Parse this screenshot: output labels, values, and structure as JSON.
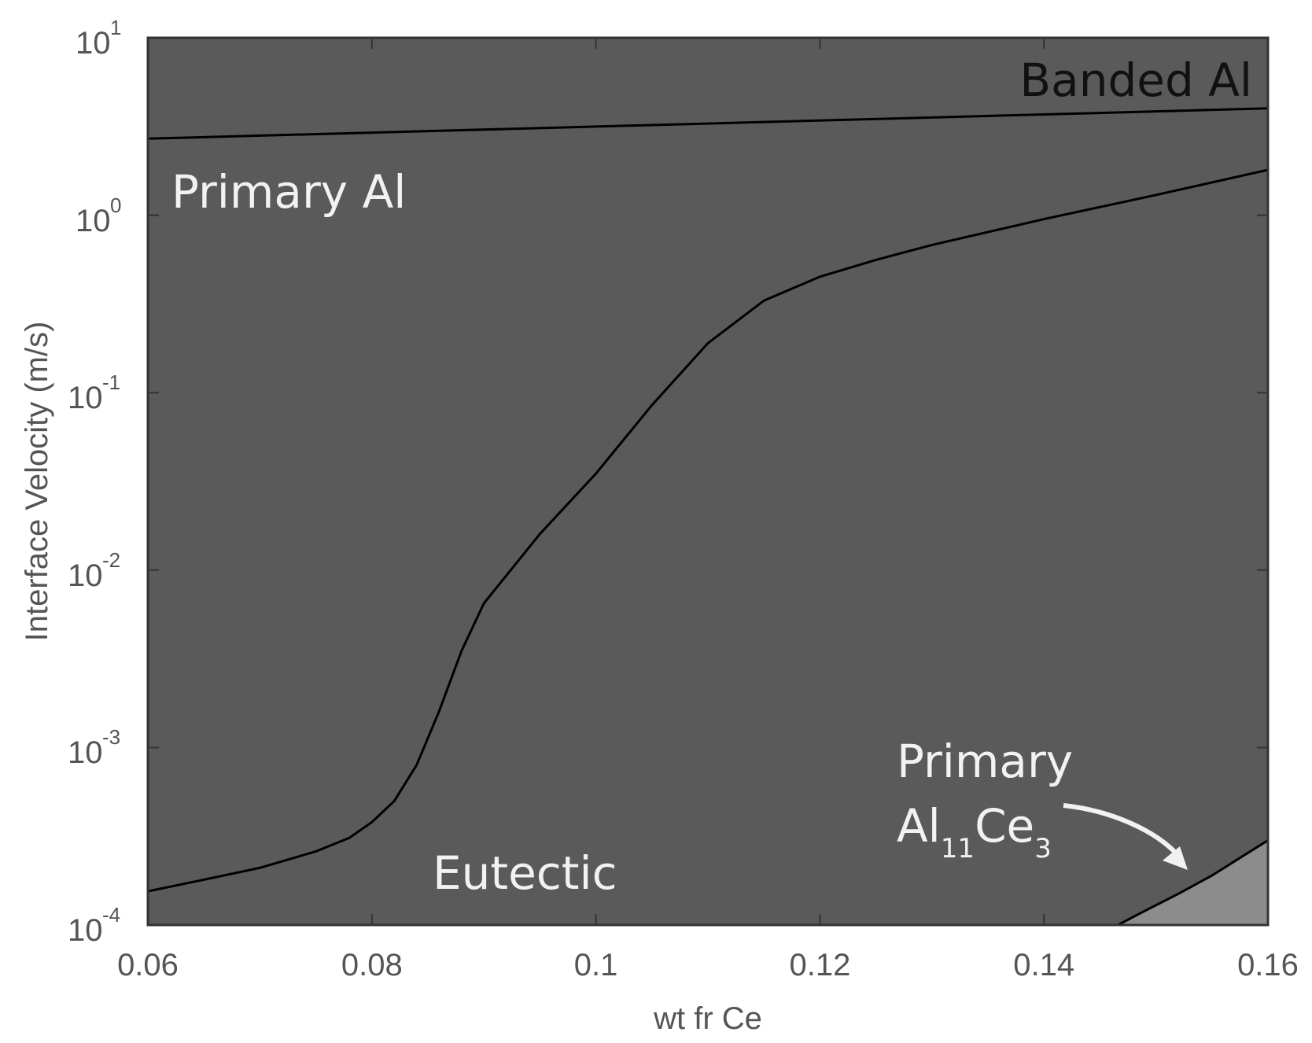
{
  "chart_data": {
    "type": "area",
    "title": "",
    "xlabel": "wt fr Ce",
    "ylabel": "Interface Velocity (m/s)",
    "xlim": [
      0.06,
      0.16
    ],
    "ylim": [
      0.0001,
      10
    ],
    "y_scale": "log",
    "x_ticks": [
      "0.06",
      "0.08",
      "0.1",
      "0.12",
      "0.14",
      "0.16"
    ],
    "y_ticks": [
      {
        "base": "10",
        "exp": "-4",
        "value": 0.0001
      },
      {
        "base": "10",
        "exp": "-3",
        "value": 0.001
      },
      {
        "base": "10",
        "exp": "-2",
        "value": 0.01
      },
      {
        "base": "10",
        "exp": "-1",
        "value": 0.1
      },
      {
        "base": "10",
        "exp": "0",
        "value": 1
      },
      {
        "base": "10",
        "exp": "1",
        "value": 10
      }
    ],
    "grid": false,
    "boundaries": [
      {
        "between": [
          "Banded Al",
          "Primary Al"
        ],
        "x": [
          0.06,
          0.16
        ],
        "y": [
          2.7,
          4.0
        ]
      },
      {
        "between": [
          "Primary Al",
          "Eutectic"
        ],
        "x": [
          0.06,
          0.065,
          0.07,
          0.075,
          0.078,
          0.08,
          0.082,
          0.084,
          0.086,
          0.088,
          0.09,
          0.095,
          0.1,
          0.105,
          0.11,
          0.115,
          0.12,
          0.125,
          0.13,
          0.14,
          0.15,
          0.16
        ],
        "y": [
          0.000155,
          0.00018,
          0.00021,
          0.00026,
          0.00031,
          0.00038,
          0.0005,
          0.0008,
          0.0016,
          0.0035,
          0.0065,
          0.016,
          0.035,
          0.085,
          0.19,
          0.33,
          0.45,
          0.56,
          0.68,
          0.95,
          1.3,
          1.8
        ]
      },
      {
        "between": [
          "Eutectic",
          "Primary Al11Ce3"
        ],
        "x": [
          0.1466,
          0.149,
          0.152,
          0.155,
          0.158,
          0.16
        ],
        "y": [
          0.0001,
          0.00012,
          0.00015,
          0.00019,
          0.00025,
          0.0003
        ]
      }
    ],
    "regions": [
      {
        "name": "Banded Al",
        "color": "#b5b5b5"
      },
      {
        "name": "Primary Al",
        "color": "#303030"
      },
      {
        "name": "Eutectic",
        "color": "#5a5a5a"
      },
      {
        "name": "Primary Al11Ce3",
        "color": "#8c8c8c"
      }
    ],
    "annotations": [
      {
        "text": "Banded Al",
        "color": "#111111"
      },
      {
        "text": "Primary Al",
        "color": "#f2f2f2"
      },
      {
        "text": "Eutectic",
        "color": "#f2f2f2"
      },
      {
        "text": "Primary",
        "color": "#f2f2f2"
      },
      {
        "text_main1": "Al",
        "sub1": "11",
        "text_main2": "Ce",
        "sub2": "3",
        "color": "#f2f2f2"
      }
    ]
  }
}
